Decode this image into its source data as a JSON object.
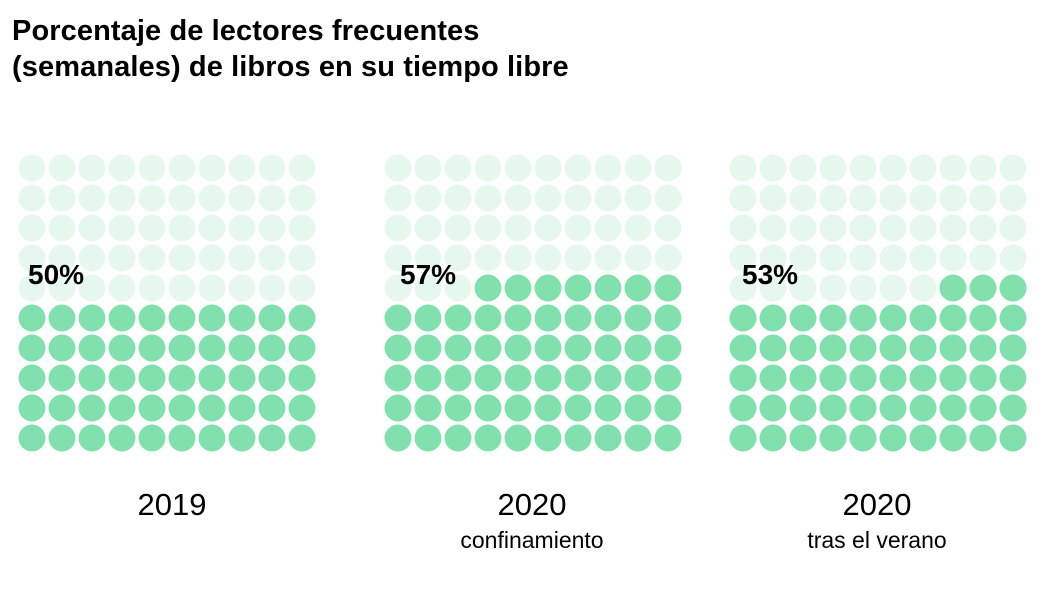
{
  "colors": {
    "filled": "#82dfae",
    "empty": "#e6f7ee",
    "text": "#000000"
  },
  "chart_data": {
    "type": "waffle",
    "title": "Porcentaje de lectores frecuentes (semanales) de libros en su tiempo libre",
    "title_lines": [
      "Porcentaje de lectores frecuentes",
      "(semanales) de libros en su tiempo libre"
    ],
    "grid": {
      "rows": 10,
      "cols": 10
    },
    "panels": [
      {
        "year": "2019",
        "subtitle": "",
        "value": 50,
        "value_label": "50%"
      },
      {
        "year": "2020",
        "subtitle": "confinamiento",
        "value": 57,
        "value_label": "57%"
      },
      {
        "year": "2020",
        "subtitle": "tras el verano",
        "value": 53,
        "value_label": "53%"
      }
    ]
  }
}
